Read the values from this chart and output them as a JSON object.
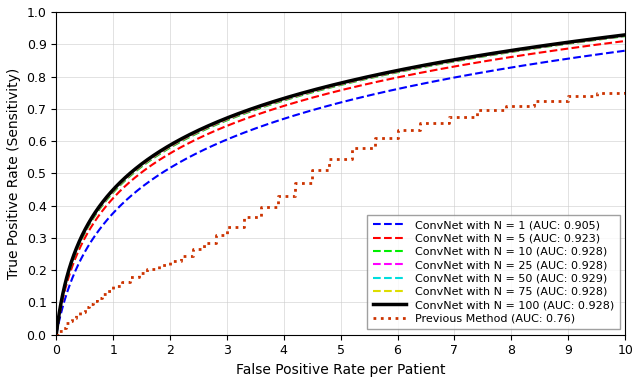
{
  "title": "",
  "xlabel": "False Positive Rate per Patient",
  "ylabel": "True Positive Rate (Sensitivity)",
  "xlim": [
    0,
    10
  ],
  "ylim": [
    0,
    1.0
  ],
  "xticks": [
    0,
    1,
    2,
    3,
    4,
    5,
    6,
    7,
    8,
    9,
    10
  ],
  "yticks": [
    0.0,
    0.1,
    0.2,
    0.3,
    0.4,
    0.5,
    0.6,
    0.7,
    0.8,
    0.9,
    1.0
  ],
  "series": [
    {
      "label": "ConvNet with N = 1 (AUC: 0.905)",
      "color": "#0000FF",
      "linestyle": "--",
      "linewidth": 1.5,
      "shape_k": 0.38,
      "shape_a": 0.88
    },
    {
      "label": "ConvNet with N = 5 (AUC: 0.923)",
      "color": "#FF0000",
      "linestyle": "--",
      "linewidth": 1.5,
      "shape_k": 0.55,
      "shape_a": 0.91
    },
    {
      "label": "ConvNet with N = 10 (AUC: 0.928)",
      "color": "#00EE00",
      "linestyle": "--",
      "linewidth": 1.5,
      "shape_k": 0.62,
      "shape_a": 0.925
    },
    {
      "label": "ConvNet with N = 25 (AUC: 0.928)",
      "color": "#FF00FF",
      "linestyle": "--",
      "linewidth": 1.5,
      "shape_k": 0.64,
      "shape_a": 0.926
    },
    {
      "label": "ConvNet with N = 50 (AUC: 0.929)",
      "color": "#00DDDD",
      "linestyle": "--",
      "linewidth": 1.5,
      "shape_k": 0.66,
      "shape_a": 0.928
    },
    {
      "label": "ConvNet with N = 75 (AUC: 0.928)",
      "color": "#DDDD00",
      "linestyle": "--",
      "linewidth": 1.5,
      "shape_k": 0.65,
      "shape_a": 0.927
    },
    {
      "label": "ConvNet with N = 100 (AUC: 0.928)",
      "color": "#000000",
      "linestyle": "-",
      "linewidth": 2.5,
      "shape_k": 0.67,
      "shape_a": 0.929
    },
    {
      "label": "Previous Method (AUC: 0.76)",
      "color": "#CC3300",
      "linestyle": ":",
      "linewidth": 2.0,
      "shape_k": 0.0,
      "shape_a": 0.75
    }
  ],
  "staircase_x": [
    0,
    0.05,
    0.12,
    0.18,
    0.22,
    0.28,
    0.35,
    0.42,
    0.5,
    0.58,
    0.65,
    0.72,
    0.8,
    0.9,
    1.0,
    1.15,
    1.3,
    1.45,
    1.6,
    1.8,
    2.0,
    2.2,
    2.4,
    2.6,
    2.8,
    3.0,
    3.3,
    3.6,
    3.9,
    4.2,
    4.5,
    4.8,
    5.2,
    5.6,
    6.0,
    6.4,
    6.9,
    7.4,
    7.9,
    8.4,
    9.0,
    9.5,
    10.0
  ],
  "staircase_y": [
    0,
    0.012,
    0.022,
    0.035,
    0.042,
    0.052,
    0.062,
    0.072,
    0.085,
    0.095,
    0.105,
    0.115,
    0.125,
    0.135,
    0.15,
    0.165,
    0.178,
    0.192,
    0.205,
    0.215,
    0.228,
    0.245,
    0.265,
    0.285,
    0.31,
    0.335,
    0.365,
    0.395,
    0.43,
    0.47,
    0.51,
    0.545,
    0.58,
    0.61,
    0.635,
    0.655,
    0.675,
    0.695,
    0.71,
    0.725,
    0.74,
    0.75,
    0.76
  ],
  "legend_loc": "lower right",
  "legend_fontsize": 8,
  "grid": true,
  "background_color": "#FFFFFF"
}
